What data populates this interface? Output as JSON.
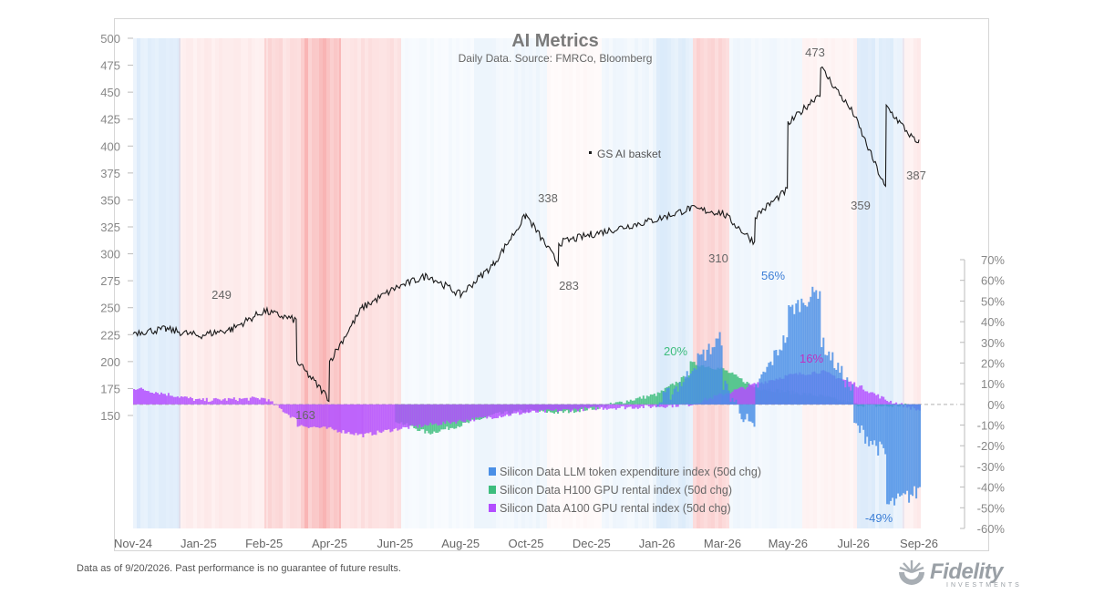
{
  "footer": {
    "note": "Data as of 9/20/2026. Past performance is no guarantee of future results.",
    "logo_text": "Fidelity",
    "logo_subtext": "INVESTMENTS"
  },
  "colors": {
    "line": "#1a1a1a",
    "llm": "#4a8fe6",
    "h100": "#3dbd7d",
    "a100": "#b34dff",
    "band_red": "#f05050",
    "band_blue": "#5aa0e6",
    "axis_text": "#888888"
  },
  "chart_data": {
    "type": "line",
    "title": "AI Metrics",
    "subtitle": "Daily Data. Source: FMRCo, Bloomberg",
    "x_tick_labels": [
      "Nov-24",
      "Jan-25",
      "Feb-25",
      "Apr-25",
      "Jun-25",
      "Aug-25",
      "Oct-25",
      "Dec-25",
      "Jan-26",
      "Mar-26",
      "May-26",
      "Jul-26",
      "Sep-26"
    ],
    "y_left": {
      "ticks": [
        150,
        175,
        200,
        225,
        250,
        275,
        300,
        325,
        350,
        375,
        400,
        425,
        450,
        475,
        500
      ],
      "range": [
        150,
        500
      ]
    },
    "y_right": {
      "ticks": [
        "70%",
        "60%",
        "50%",
        "40%",
        "30%",
        "20%",
        "10%",
        "0%",
        "-10%",
        "-20%",
        "-30%",
        "-40%",
        "-50%",
        "-60%"
      ],
      "range": [
        -60,
        70
      ]
    },
    "series": [
      {
        "name": "GS AI basket",
        "axis": "left",
        "x": [
          "Nov-24",
          "Dec-24",
          "Jan-25",
          "Jan-25b",
          "Feb-25",
          "Feb-25b",
          "Mar-25",
          "Mar-25b",
          "Apr-25",
          "May-25",
          "Jun-25",
          "Jul-25",
          "Aug-25",
          "Sep-25",
          "Oct-25",
          "Oct-25b",
          "Nov-25",
          "Dec-25",
          "Jan-26",
          "Feb-26",
          "Mar-26",
          "Mar-26b",
          "Apr-26",
          "Apr-26b",
          "May-26",
          "May-26b",
          "Jun-26",
          "Jul-26",
          "Jul-26b",
          "Aug-26",
          "Aug-26b",
          "Sep-26"
        ],
        "values": [
          227,
          230,
          224,
          230,
          247,
          238,
          200,
          165,
          200,
          250,
          268,
          280,
          262,
          290,
          336,
          290,
          310,
          318,
          332,
          342,
          338,
          310,
          335,
          360,
          420,
          450,
          473,
          430,
          359,
          437,
          400,
          406
        ]
      },
      {
        "name": "Silicon Data LLM token expenditure index (50d chg)",
        "axis": "right",
        "x": [
          "Jan-26",
          "Jan-26b",
          "Feb-26",
          "Feb-26b",
          "Mar-26",
          "Mar-26b",
          "Apr-26",
          "Apr-26b",
          "May-26",
          "May-26b",
          "Jun-26",
          "Jun-26b",
          "Jul-26",
          "Jul-26b",
          "Aug-26",
          "Aug-26b",
          "Sep-26"
        ],
        "values": [
          0,
          15,
          18,
          33,
          10,
          -15,
          8,
          35,
          45,
          56,
          30,
          5,
          -10,
          -25,
          -49,
          -42,
          -40
        ]
      },
      {
        "name": "Silicon Data H100 GPU rental index (50d chg)",
        "axis": "right",
        "x": [
          "Jun-25",
          "Jul-25",
          "Aug-25",
          "Sep-25",
          "Oct-25",
          "Nov-25",
          "Dec-25",
          "Jan-26",
          "Jan-26b",
          "Feb-26",
          "Mar-26",
          "Apr-26",
          "May-26",
          "Jun-26",
          "Jul-26",
          "Aug-26",
          "Sep-26"
        ],
        "values": [
          -8,
          -14,
          -10,
          -5,
          -3,
          -4,
          -2,
          5,
          15,
          20,
          17,
          8,
          6,
          4,
          0,
          -1,
          0
        ]
      },
      {
        "name": "Silicon Data A100 GPU rental index (50d chg)",
        "axis": "right",
        "x": [
          "Nov-24",
          "Dec-24",
          "Jan-25",
          "Feb-25",
          "Feb-25b",
          "Mar-25",
          "Apr-25",
          "May-25",
          "Jun-25",
          "Jul-25",
          "Aug-25",
          "Sep-25",
          "Oct-25",
          "Nov-25",
          "Dec-25",
          "Jan-26",
          "Feb-26",
          "Mar-26",
          "Apr-26",
          "May-26",
          "Jun-26",
          "Jul-26",
          "Aug-26",
          "Sep-26"
        ],
        "values": [
          8,
          5,
          2,
          3,
          -8,
          -10,
          -12,
          -15,
          -12,
          -10,
          -8,
          -6,
          -4,
          -3,
          -2,
          -1,
          0,
          5,
          10,
          14,
          16,
          10,
          2,
          -3
        ]
      }
    ],
    "annotations": [
      {
        "text": "249",
        "series": "GS AI basket"
      },
      {
        "text": "163",
        "series": "GS AI basket"
      },
      {
        "text": "338",
        "series": "GS AI basket"
      },
      {
        "text": "283",
        "series": "GS AI basket"
      },
      {
        "text": "310",
        "series": "GS AI basket"
      },
      {
        "text": "473",
        "series": "GS AI basket"
      },
      {
        "text": "359",
        "series": "GS AI basket"
      },
      {
        "text": "387",
        "series": "GS AI basket"
      },
      {
        "text": "20%",
        "series": "Silicon Data H100 GPU rental index (50d chg)"
      },
      {
        "text": "56%",
        "series": "Silicon Data LLM token expenditure index (50d chg)"
      },
      {
        "text": "16%",
        "series": "Silicon Data A100 GPU rental index (50d chg)"
      },
      {
        "text": "-49%",
        "series": "Silicon Data LLM token expenditure index (50d chg)"
      }
    ],
    "legend_placement": "bottom-center",
    "background_regime_bands": true,
    "grid": false
  }
}
